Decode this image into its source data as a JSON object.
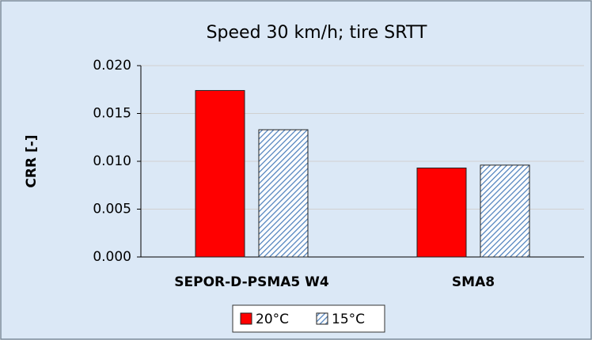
{
  "chart_data": {
    "type": "bar",
    "title": "Speed 30 km/h; tire SRTT",
    "y_label": "CRR [-]",
    "categories": [
      "SEPOR-D-PSMA5 W4",
      "SMA8"
    ],
    "series": [
      {
        "name": "20°C",
        "color": "#ff0000",
        "pattern": "solid",
        "values": [
          0.0174,
          0.0093
        ]
      },
      {
        "name": "15°C",
        "color": "#4f81bd",
        "pattern": "hatch",
        "values": [
          0.0133,
          0.0096
        ]
      }
    ],
    "ylim": [
      0,
      0.02
    ],
    "yticks": [
      {
        "value": 0,
        "label": "0.000"
      },
      {
        "value": 0.005,
        "label": "0.005"
      },
      {
        "value": 0.01,
        "label": "0.010"
      },
      {
        "value": 0.015,
        "label": "0.015"
      },
      {
        "value": 0.02,
        "label": "0.020"
      }
    ],
    "grid": true,
    "legend": "bottom"
  }
}
